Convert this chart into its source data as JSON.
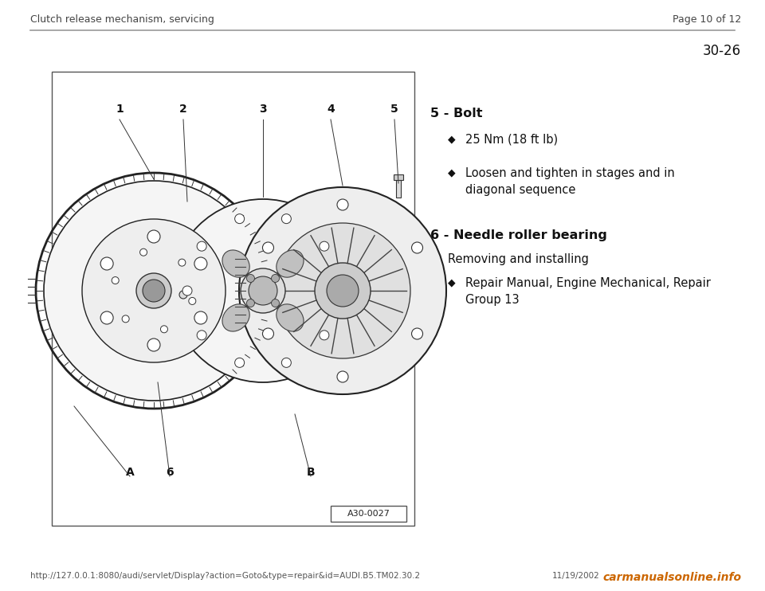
{
  "bg_color": "#ffffff",
  "header_left": "Clutch release mechanism, servicing",
  "header_right": "Page 10 of 12",
  "page_number": "30-26",
  "header_line_color": "#999999",
  "footer_url": "http://127.0.0.1:8080/audi/servlet/Display?action=Goto&type=repair&id=AUDI.B5.TM02.30.2",
  "footer_date": "11/19/2002",
  "footer_brand": "carmanualsonline.info",
  "diagram_label": "A30-0027",
  "item5_title": "5 - Bolt",
  "item5_b1": "25 Nm (18 ft lb)",
  "item5_b2": "Loosen and tighten in stages and in\ndiagonal sequence",
  "item6_title": "6 - Needle roller bearing",
  "item6_sub": "Removing and installing",
  "item6_b1": "Repair Manual, Engine Mechanical, Repair\nGroup 13"
}
